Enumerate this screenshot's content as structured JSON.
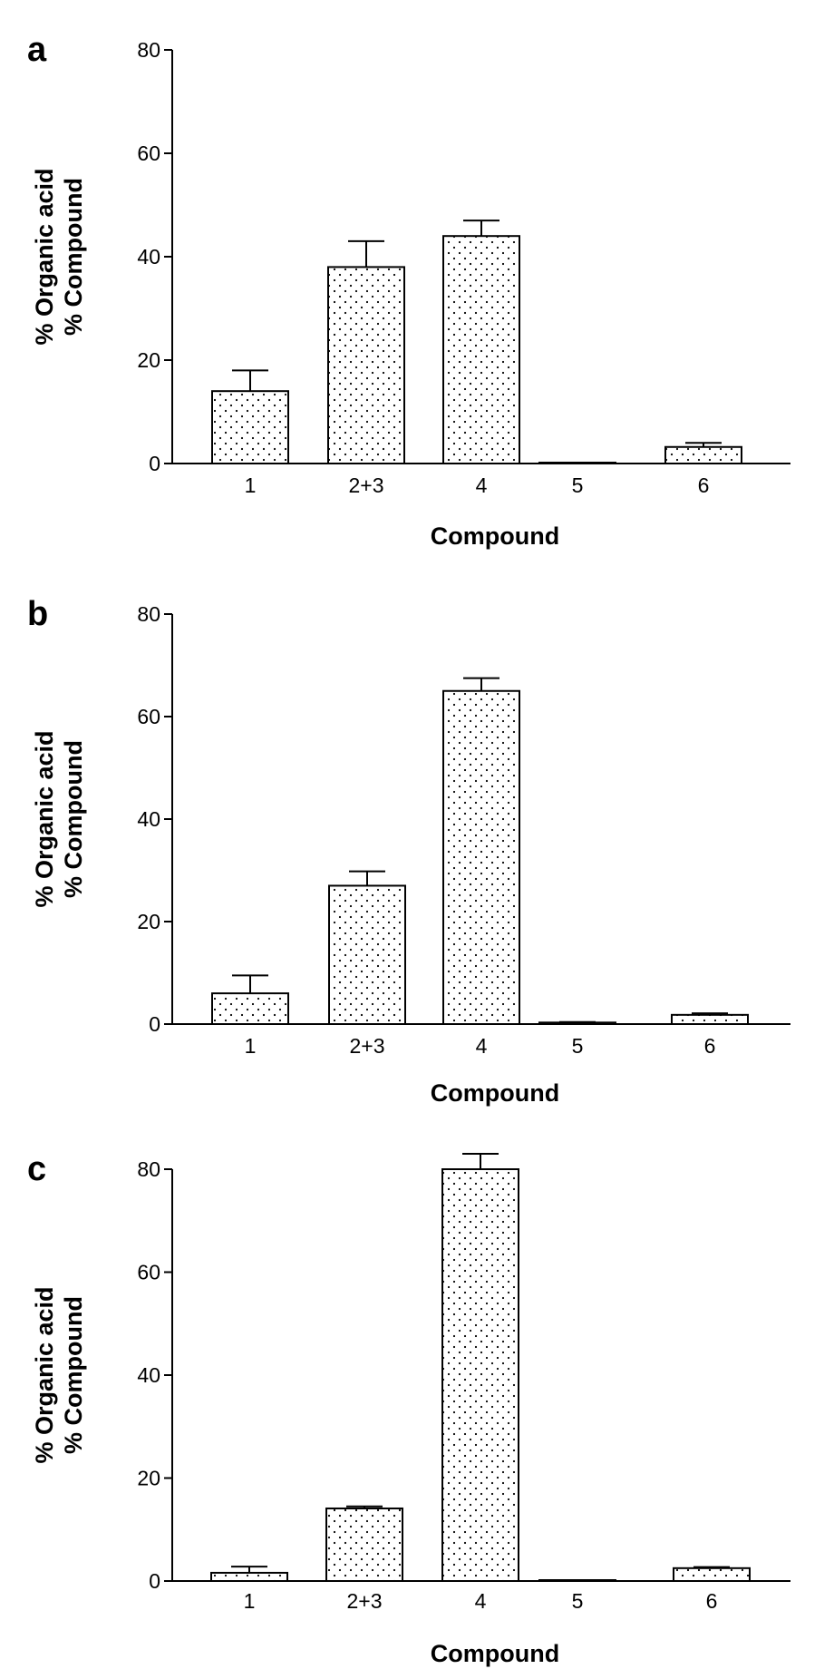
{
  "colors": {
    "ink": "#000000",
    "background": "#ffffff",
    "bar_fill_pattern": "dotted"
  },
  "chart_data": [
    {
      "type": "bar",
      "panel": "a",
      "categories": [
        "1",
        "2+3",
        "4",
        "5",
        "6"
      ],
      "values": [
        14,
        38,
        44,
        0.1,
        3.2
      ],
      "errors": [
        4,
        5,
        3,
        0,
        0.8
      ],
      "xlabel": "Compound",
      "ylabel": [
        "% Organic acid",
        "% Compound"
      ],
      "yticks": [
        "0",
        "20",
        "40",
        "60",
        "80"
      ],
      "ylim": [
        0,
        80
      ],
      "grid": false,
      "legend": "none"
    },
    {
      "type": "bar",
      "panel": "b",
      "categories": [
        "1",
        "2+3",
        "4",
        "5",
        "6"
      ],
      "values": [
        6,
        27,
        65,
        0.3,
        1.8
      ],
      "errors": [
        3.5,
        2.8,
        2.5,
        0.1,
        0.3
      ],
      "xlabel": "Compound",
      "ylabel": [
        "% Organic acid",
        "% Compound"
      ],
      "yticks": [
        "0",
        "20",
        "40",
        "60",
        "80"
      ],
      "ylim": [
        0,
        80
      ],
      "grid": false,
      "legend": "none"
    },
    {
      "type": "bar",
      "panel": "c",
      "categories": [
        "1",
        "2+3",
        "4",
        "5",
        "6"
      ],
      "values": [
        1.6,
        14.1,
        80,
        0.1,
        2.5
      ],
      "errors": [
        1.2,
        0.4,
        3,
        0,
        0.2
      ],
      "xlabel": "Compound",
      "ylabel": [
        "% Organic acid",
        "% Compound"
      ],
      "yticks": [
        "0",
        "20",
        "40",
        "60",
        "80"
      ],
      "ylim": [
        0,
        80
      ],
      "grid": false,
      "legend": "none"
    }
  ]
}
